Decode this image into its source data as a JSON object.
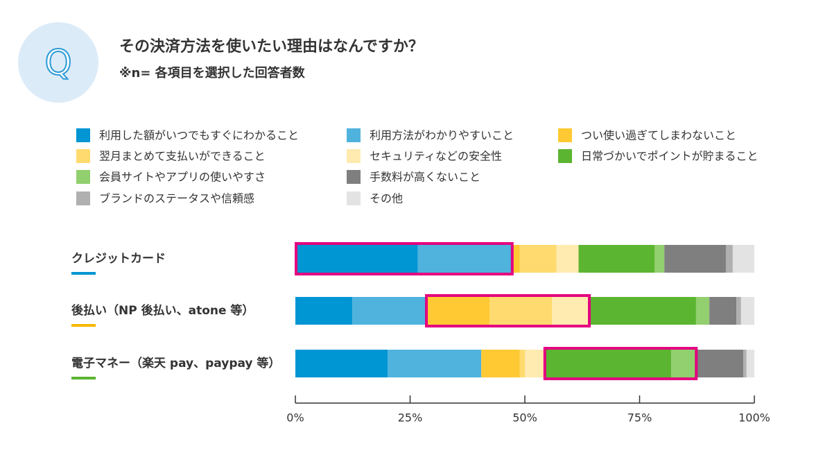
{
  "chart_data": {
    "type": "bar",
    "orientation": "horizontal",
    "stacked": true,
    "icon_label": "Q",
    "title": "その決済方法を使いたい理由はなんですか？",
    "subtitle": "※n= 各項目を選択した回答者数",
    "categories": [
      "クレジットカード",
      "後払い（NP 後払い、atone 等）",
      "電子マネー（楽天 pay、paypay 等）"
    ],
    "category_colors": [
      "#0095d3",
      "#f5b800",
      "#5cb531"
    ],
    "series": [
      {
        "name": "利用した額がいつでもすぐにわかること",
        "color": "#0095d3",
        "values": [
          26.7,
          12.4,
          20.1
        ]
      },
      {
        "name": "利用方法がわかりやすいこと",
        "color": "#4fb3de",
        "values": [
          20.7,
          16.0,
          20.4
        ]
      },
      {
        "name": "つい使い過ぎてしまわないこと",
        "color": "#ffc933",
        "values": [
          1.5,
          13.9,
          8.4
        ]
      },
      {
        "name": "翌月まとめて支払いができること",
        "color": "#ffda6e",
        "values": [
          8.0,
          13.6,
          1.1
        ]
      },
      {
        "name": "セキュリティなどの安全性",
        "color": "#ffeab0",
        "values": [
          4.8,
          8.3,
          4.2
        ]
      },
      {
        "name": "日常づかいでポイントが貯まること",
        "color": "#5cb531",
        "values": [
          16.6,
          23.1,
          27.7
        ]
      },
      {
        "name": "会員サイトやアプリの使いやすさ",
        "color": "#92cf6e",
        "values": [
          2.1,
          2.9,
          5.6
        ]
      },
      {
        "name": "手数料が高くないこと",
        "color": "#7f7f7f",
        "values": [
          13.4,
          5.9,
          10.1
        ]
      },
      {
        "name": "ブランドのステータスや信頼感",
        "color": "#b0b0b0",
        "values": [
          1.5,
          1.0,
          0.7
        ]
      },
      {
        "name": "その他",
        "color": "#e3e3e3",
        "values": [
          4.7,
          2.9,
          1.7
        ]
      }
    ],
    "xlim": [
      0,
      100
    ],
    "xticks": [
      {
        "value": 0,
        "label": "0%"
      },
      {
        "value": 25,
        "label": "25%"
      },
      {
        "value": 50,
        "label": "50%"
      },
      {
        "value": 75,
        "label": "75%"
      },
      {
        "value": 100,
        "label": "100%"
      }
    ]
  }
}
